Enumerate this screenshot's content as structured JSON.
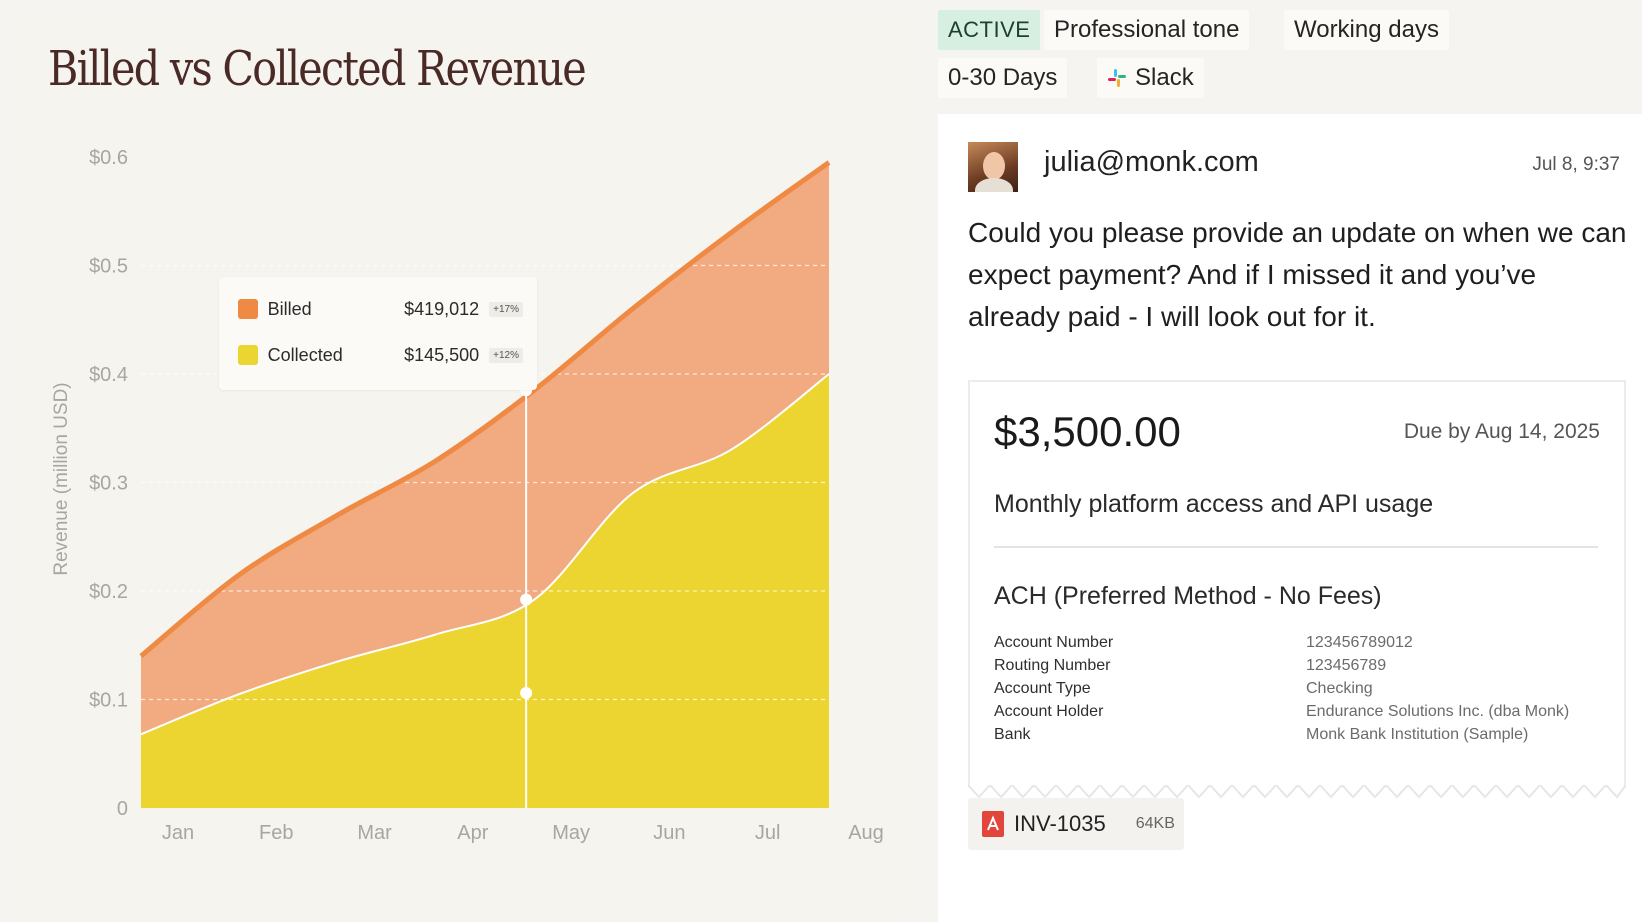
{
  "chart_data": {
    "type": "area",
    "title": "Billed vs Collected Revenue",
    "ylabel": "Revenue (million USD)",
    "xlabel": "",
    "categories": [
      "Jan",
      "Feb",
      "Mar",
      "Apr",
      "May",
      "Jun",
      "Jul",
      "Aug"
    ],
    "y_ticks": [
      "0",
      "$0.1",
      "$0.2",
      "$0.3",
      "$0.4",
      "$0.5",
      "$0.6"
    ],
    "ylim": [
      0,
      0.6
    ],
    "grid": "horizontal dashed",
    "series": [
      {
        "name": "Billed",
        "values": [
          0.14,
          0.215,
          0.27,
          0.32,
          0.385,
          0.46,
          0.53,
          0.595
        ],
        "color": "#f2aa80",
        "line_color": "#ef8a45"
      },
      {
        "name": "Collected",
        "values": [
          0.068,
          0.105,
          0.135,
          0.16,
          0.192,
          0.29,
          0.33,
          0.4
        ],
        "color": "#ecd530",
        "line_color": "#ffffff"
      }
    ],
    "highlight": {
      "category": "May",
      "marker_values": [
        0.385,
        0.192,
        0.106
      ]
    },
    "legend": {
      "placement": "top-left",
      "items": [
        {
          "name": "Billed",
          "value": "$419,012",
          "change": "+17%",
          "color": "#ef8a45"
        },
        {
          "name": "Collected",
          "value": "$145,500",
          "change": "+12%",
          "color": "#ecd530"
        }
      ]
    }
  },
  "tags": {
    "status": "ACTIVE",
    "tone": "Professional tone",
    "days": "Working days",
    "range": "0-30 Days",
    "channel": "Slack"
  },
  "message": {
    "sender": "julia@monk.com",
    "time": "Jul 8, 9:37",
    "body": "Could you please provide an update on when we can expect payment? And if I missed it and you’ve already paid - I will look out for it."
  },
  "invoice": {
    "amount": "$3,500.00",
    "due": "Due by Aug 14, 2025",
    "description": "Monthly platform access and API usage",
    "method": "ACH (Preferred Method - No Fees)",
    "details": [
      {
        "label": "Account Number",
        "value": "123456789012"
      },
      {
        "label": "Routing Number",
        "value": "123456789"
      },
      {
        "label": "Account Type",
        "value": "Checking"
      },
      {
        "label": "Account Holder",
        "value": "Endurance Solutions Inc. (dba Monk)"
      },
      {
        "label": "Bank",
        "value": "Monk Bank Institution (Sample)"
      }
    ]
  },
  "attachment": {
    "name": "INV-1035",
    "size": "64KB",
    "icon": "pdf-icon"
  },
  "colors": {
    "billed": "#ef8a45",
    "collected": "#ecd530",
    "active_tag_bg": "#d6efe1"
  }
}
